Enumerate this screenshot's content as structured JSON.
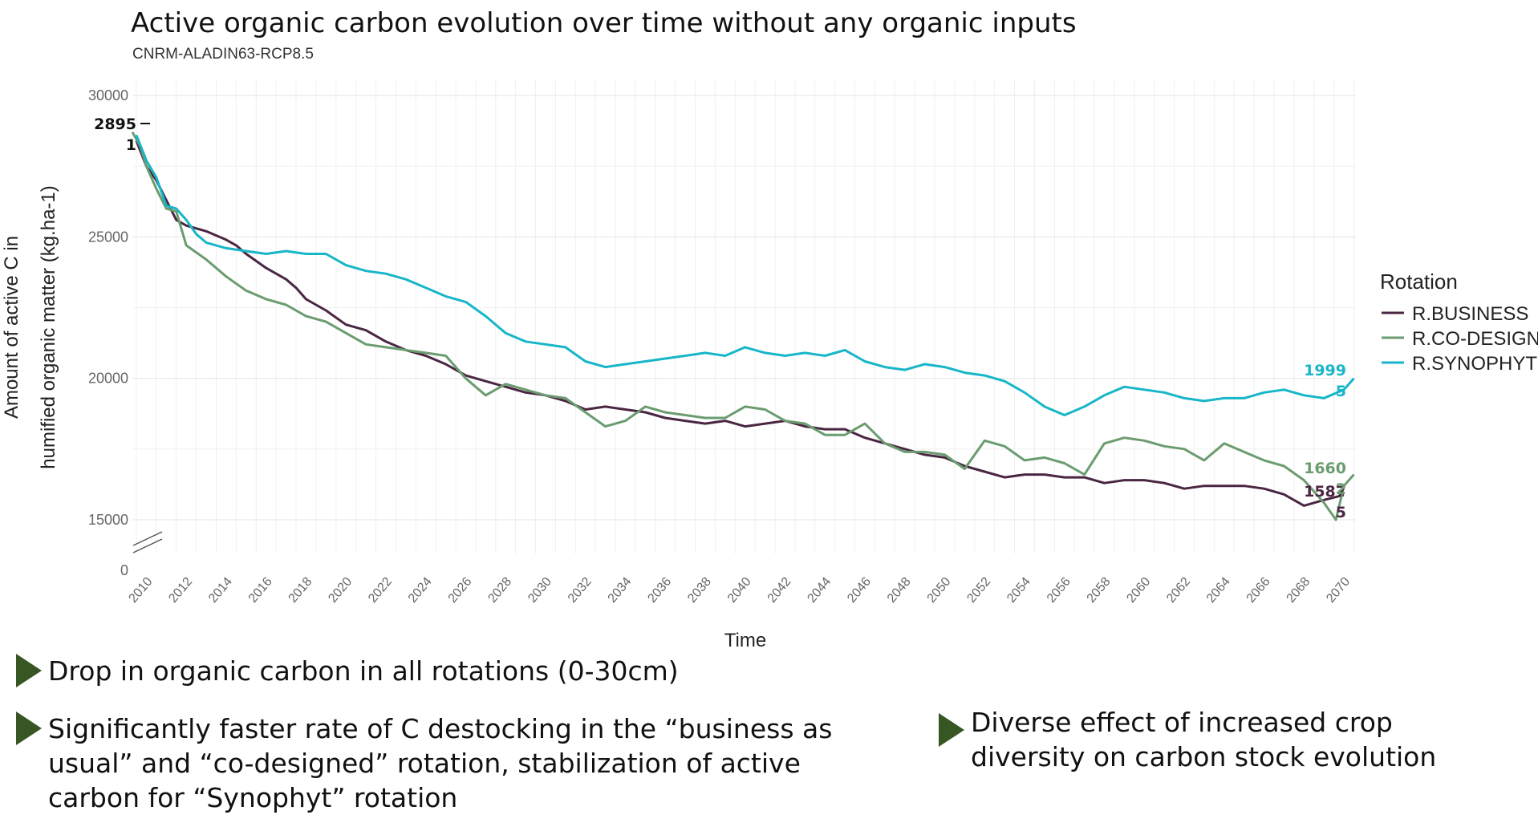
{
  "chart_data": {
    "type": "line",
    "title": "Active organic carbon evolution over time without any organic inputs",
    "subtitle": "CNRM-ALADIN63-RCP8.5",
    "xlabel": "Time",
    "ylabel": "Amount of active C in humified organic matter (kg.ha-1)",
    "ylabel_lines": [
      "Amount of active C in",
      "humified organic matter (kg.ha-1)"
    ],
    "x_ticks": [
      "2010",
      "2012",
      "2014",
      "2016",
      "2018",
      "2020",
      "2022",
      "2024",
      "2026",
      "2028",
      "2030",
      "2032",
      "2034",
      "2036",
      "2038",
      "2040",
      "2042",
      "2044",
      "2046",
      "2048",
      "2050",
      "2052",
      "2054",
      "2056",
      "2058",
      "2060",
      "2062",
      "2064",
      "2066",
      "2068",
      "2070"
    ],
    "y_ticks": [
      "30000",
      "25000",
      "20000",
      "15000"
    ],
    "y_zero_tick": "0",
    "ylim": [
      15000,
      30000
    ],
    "xlim": [
      2009.3,
      2070.6
    ],
    "axis_break": true,
    "grid": true,
    "legend": {
      "title": "Rotation",
      "position": "right"
    },
    "start_label": [
      "2895",
      "1"
    ],
    "series": [
      {
        "name": "R.BUSINESS",
        "color": "#4a2642",
        "end_label": [
          "1587",
          "5"
        ],
        "points": [
          [
            2009.5,
            28400
          ],
          [
            2010,
            27500
          ],
          [
            2010.5,
            27000
          ],
          [
            2011,
            26300
          ],
          [
            2011.5,
            25600
          ],
          [
            2012,
            25400
          ],
          [
            2013,
            25200
          ],
          [
            2014,
            24900
          ],
          [
            2014.5,
            24700
          ],
          [
            2015,
            24400
          ],
          [
            2016,
            23900
          ],
          [
            2017,
            23500
          ],
          [
            2017.5,
            23200
          ],
          [
            2018,
            22800
          ],
          [
            2018.5,
            22600
          ],
          [
            2019,
            22400
          ],
          [
            2020,
            21900
          ],
          [
            2021,
            21700
          ],
          [
            2022,
            21300
          ],
          [
            2023,
            21000
          ],
          [
            2024,
            20800
          ],
          [
            2025,
            20500
          ],
          [
            2026,
            20100
          ],
          [
            2027,
            19900
          ],
          [
            2028,
            19700
          ],
          [
            2029,
            19500
          ],
          [
            2030,
            19400
          ],
          [
            2031,
            19200
          ],
          [
            2032,
            18900
          ],
          [
            2033,
            19000
          ],
          [
            2034,
            18900
          ],
          [
            2035,
            18800
          ],
          [
            2036,
            18600
          ],
          [
            2037,
            18500
          ],
          [
            2038,
            18400
          ],
          [
            2039,
            18500
          ],
          [
            2040,
            18300
          ],
          [
            2041,
            18400
          ],
          [
            2042,
            18500
          ],
          [
            2043,
            18300
          ],
          [
            2044,
            18200
          ],
          [
            2045,
            18200
          ],
          [
            2046,
            17900
          ],
          [
            2047,
            17700
          ],
          [
            2048,
            17500
          ],
          [
            2049,
            17300
          ],
          [
            2050,
            17200
          ],
          [
            2051,
            16900
          ],
          [
            2052,
            16700
          ],
          [
            2053,
            16500
          ],
          [
            2054,
            16600
          ],
          [
            2055,
            16600
          ],
          [
            2056,
            16500
          ],
          [
            2057,
            16500
          ],
          [
            2058,
            16300
          ],
          [
            2059,
            16400
          ],
          [
            2060,
            16400
          ],
          [
            2061,
            16300
          ],
          [
            2062,
            16100
          ],
          [
            2063,
            16200
          ],
          [
            2064,
            16200
          ],
          [
            2065,
            16200
          ],
          [
            2066,
            16100
          ],
          [
            2067,
            15900
          ],
          [
            2068,
            15500
          ],
          [
            2069,
            15700
          ],
          [
            2070,
            15875
          ]
        ]
      },
      {
        "name": "R.CO-DESIGNED",
        "color": "#6b9c70",
        "end_label": [
          "1660",
          "2"
        ],
        "points": [
          [
            2009.3,
            28700
          ],
          [
            2009.7,
            28200
          ],
          [
            2010,
            27500
          ],
          [
            2010.5,
            26700
          ],
          [
            2011,
            26000
          ],
          [
            2011.5,
            25900
          ],
          [
            2012,
            24700
          ],
          [
            2013,
            24200
          ],
          [
            2014,
            23600
          ],
          [
            2015,
            23100
          ],
          [
            2016,
            22800
          ],
          [
            2017,
            22600
          ],
          [
            2018,
            22200
          ],
          [
            2019,
            22000
          ],
          [
            2020,
            21600
          ],
          [
            2021,
            21200
          ],
          [
            2022,
            21100
          ],
          [
            2023,
            21000
          ],
          [
            2024,
            20900
          ],
          [
            2025,
            20800
          ],
          [
            2026,
            20000
          ],
          [
            2027,
            19400
          ],
          [
            2028,
            19800
          ],
          [
            2029,
            19600
          ],
          [
            2030,
            19400
          ],
          [
            2031,
            19300
          ],
          [
            2032,
            18800
          ],
          [
            2033,
            18300
          ],
          [
            2034,
            18500
          ],
          [
            2035,
            19000
          ],
          [
            2036,
            18800
          ],
          [
            2037,
            18700
          ],
          [
            2038,
            18600
          ],
          [
            2039,
            18600
          ],
          [
            2040,
            19000
          ],
          [
            2041,
            18900
          ],
          [
            2042,
            18500
          ],
          [
            2043,
            18400
          ],
          [
            2044,
            18000
          ],
          [
            2045,
            18000
          ],
          [
            2046,
            18400
          ],
          [
            2047,
            17700
          ],
          [
            2048,
            17400
          ],
          [
            2049,
            17400
          ],
          [
            2050,
            17300
          ],
          [
            2051,
            16800
          ],
          [
            2052,
            17800
          ],
          [
            2053,
            17600
          ],
          [
            2054,
            17100
          ],
          [
            2055,
            17200
          ],
          [
            2056,
            17000
          ],
          [
            2057,
            16600
          ],
          [
            2058,
            17700
          ],
          [
            2059,
            17900
          ],
          [
            2060,
            17800
          ],
          [
            2061,
            17600
          ],
          [
            2062,
            17500
          ],
          [
            2063,
            17100
          ],
          [
            2064,
            17700
          ],
          [
            2065,
            17400
          ],
          [
            2066,
            17100
          ],
          [
            2067,
            16900
          ],
          [
            2068,
            16400
          ],
          [
            2069,
            15600
          ],
          [
            2069.6,
            15000
          ],
          [
            2070,
            16200
          ],
          [
            2070.5,
            16602
          ]
        ]
      },
      {
        "name": "R.SYNOPHYT",
        "color": "#17b6c8",
        "end_label": [
          "1999",
          "5"
        ],
        "points": [
          [
            2009.5,
            28600
          ],
          [
            2010,
            27700
          ],
          [
            2010.5,
            27100
          ],
          [
            2011,
            26100
          ],
          [
            2011.5,
            26000
          ],
          [
            2012,
            25600
          ],
          [
            2012.5,
            25100
          ],
          [
            2013,
            24800
          ],
          [
            2014,
            24600
          ],
          [
            2015,
            24500
          ],
          [
            2016,
            24400
          ],
          [
            2017,
            24500
          ],
          [
            2018,
            24400
          ],
          [
            2019,
            24400
          ],
          [
            2020,
            24000
          ],
          [
            2021,
            23800
          ],
          [
            2022,
            23700
          ],
          [
            2023,
            23500
          ],
          [
            2024,
            23200
          ],
          [
            2025,
            22900
          ],
          [
            2026,
            22700
          ],
          [
            2027,
            22200
          ],
          [
            2028,
            21600
          ],
          [
            2029,
            21300
          ],
          [
            2030,
            21200
          ],
          [
            2031,
            21100
          ],
          [
            2032,
            20600
          ],
          [
            2033,
            20400
          ],
          [
            2034,
            20500
          ],
          [
            2035,
            20600
          ],
          [
            2036,
            20700
          ],
          [
            2037,
            20800
          ],
          [
            2038,
            20900
          ],
          [
            2039,
            20800
          ],
          [
            2040,
            21100
          ],
          [
            2041,
            20900
          ],
          [
            2042,
            20800
          ],
          [
            2043,
            20900
          ],
          [
            2044,
            20800
          ],
          [
            2045,
            21000
          ],
          [
            2046,
            20600
          ],
          [
            2047,
            20400
          ],
          [
            2048,
            20300
          ],
          [
            2049,
            20500
          ],
          [
            2050,
            20400
          ],
          [
            2051,
            20200
          ],
          [
            2052,
            20100
          ],
          [
            2053,
            19900
          ],
          [
            2054,
            19500
          ],
          [
            2055,
            19000
          ],
          [
            2056,
            18700
          ],
          [
            2057,
            19000
          ],
          [
            2058,
            19400
          ],
          [
            2059,
            19700
          ],
          [
            2060,
            19600
          ],
          [
            2061,
            19500
          ],
          [
            2062,
            19300
          ],
          [
            2063,
            19200
          ],
          [
            2064,
            19300
          ],
          [
            2065,
            19300
          ],
          [
            2066,
            19500
          ],
          [
            2067,
            19600
          ],
          [
            2068,
            19400
          ],
          [
            2069,
            19300
          ],
          [
            2070,
            19600
          ],
          [
            2070.5,
            19995
          ]
        ]
      }
    ]
  },
  "bullets": [
    "Drop in organic carbon in all rotations (0-30cm)",
    "Significantly faster rate of C destocking in the “business as usual” and “co-designed” rotation, stabilization of active carbon for “Synophyt” rotation",
    "Diverse effect of increased crop diversity on carbon stock evolution"
  ]
}
